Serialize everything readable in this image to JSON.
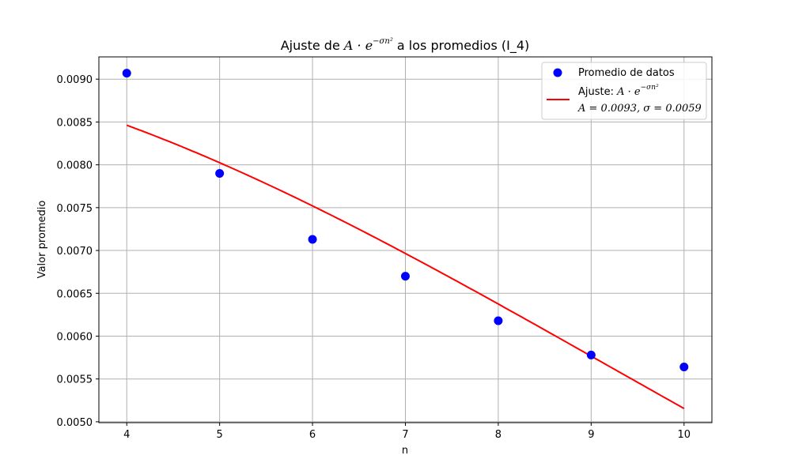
{
  "chart_data": {
    "type": "scatter",
    "title": {
      "prefix": "Ajuste de ",
      "formula_base": "A · e",
      "formula_exponent": "−σn²",
      "suffix": " a los promedios (I_4)"
    },
    "xlabel": "n",
    "ylabel": "Valor promedio",
    "xlim": [
      3.7,
      10.3
    ],
    "ylim": [
      0.00499,
      0.00926
    ],
    "xticks": [
      4,
      5,
      6,
      7,
      8,
      9,
      10
    ],
    "yticks": [
      "0.0050",
      "0.0055",
      "0.0060",
      "0.0065",
      "0.0070",
      "0.0075",
      "0.0080",
      "0.0085",
      "0.0090"
    ],
    "grid": true,
    "legend_position": "top-right",
    "series": [
      {
        "name": "Promedio de datos",
        "kind": "scatter",
        "color": "#0000ff",
        "x": [
          4,
          5,
          6,
          7,
          8,
          9,
          10
        ],
        "y": [
          0.00907,
          0.0079,
          0.00713,
          0.0067,
          0.00618,
          0.00578,
          0.00564
        ]
      },
      {
        "name_prefix": "Ajuste: ",
        "name_formula_base": "A · e",
        "name_formula_exponent": "−σn²",
        "name_line2": "A = 0.0093, σ = 0.0059",
        "kind": "line",
        "color": "#ff0000",
        "A": 0.0093,
        "sigma": 0.0059,
        "x_range": [
          4,
          10
        ]
      }
    ]
  }
}
